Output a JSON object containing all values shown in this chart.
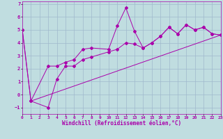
{
  "xlabel": "Windchill (Refroidissement éolien,°C)",
  "background_color": "#c0dde0",
  "grid_color": "#a0b8cc",
  "line_color": "#aa00aa",
  "xlim": [
    0,
    23
  ],
  "ylim": [
    -1.5,
    7.2
  ],
  "yticks": [
    -1,
    0,
    1,
    2,
    3,
    4,
    5,
    6,
    7
  ],
  "xticks": [
    0,
    1,
    2,
    3,
    4,
    5,
    6,
    7,
    8,
    9,
    10,
    11,
    12,
    13,
    14,
    15,
    16,
    17,
    18,
    19,
    20,
    21,
    22,
    23
  ],
  "line1_x": [
    0,
    1,
    3,
    4,
    5,
    6,
    7,
    8,
    10,
    11,
    12,
    13,
    14,
    15,
    16,
    17,
    18,
    19,
    20,
    21,
    22,
    23
  ],
  "line1_y": [
    5.0,
    -0.5,
    2.2,
    2.2,
    2.5,
    2.7,
    3.5,
    3.6,
    3.5,
    5.3,
    6.7,
    4.9,
    3.6,
    4.0,
    4.5,
    5.2,
    4.7,
    5.4,
    5.0,
    5.2,
    4.7,
    4.6
  ],
  "line2_x": [
    0,
    1,
    3,
    4,
    5,
    6,
    7,
    8,
    10,
    11,
    12,
    13,
    14,
    15,
    16,
    17,
    18,
    19,
    20,
    21,
    22,
    23
  ],
  "line2_y": [
    5.0,
    -0.5,
    -1.0,
    1.2,
    2.2,
    2.2,
    2.7,
    2.9,
    3.3,
    3.5,
    4.0,
    3.9,
    3.6,
    4.0,
    4.5,
    5.2,
    4.7,
    5.4,
    5.0,
    5.2,
    4.7,
    4.6
  ],
  "line3_x": [
    1,
    23
  ],
  "line3_y": [
    -0.5,
    4.6
  ]
}
